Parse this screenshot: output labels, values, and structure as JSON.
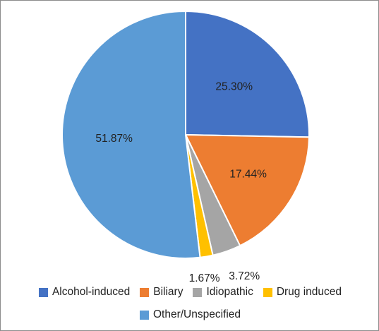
{
  "chart_data": {
    "type": "pie",
    "title": "",
    "legend_position": "bottom",
    "slices": [
      {
        "label": "Alcohol-induced",
        "value": 25.3,
        "display": "25.30%",
        "color": "#4472C4"
      },
      {
        "label": "Biliary",
        "value": 17.44,
        "display": "17.44%",
        "color": "#ED7D31"
      },
      {
        "label": "Idiopathic",
        "value": 3.72,
        "display": "3.72%",
        "color": "#A5A5A5"
      },
      {
        "label": "Drug induced",
        "value": 1.67,
        "display": "1.67%",
        "color": "#FFC000"
      },
      {
        "label": "Other/Unspecified",
        "value": 51.87,
        "display": "51.87%",
        "color": "#5B9BD5"
      }
    ]
  }
}
